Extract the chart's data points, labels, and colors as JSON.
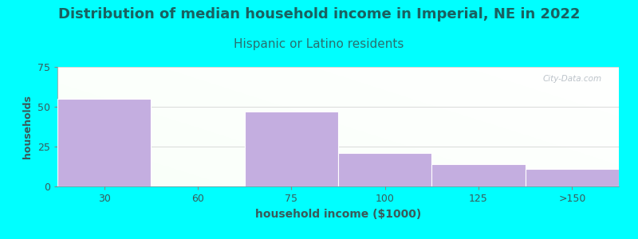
{
  "title": "Distribution of median household income in Imperial, NE in 2022",
  "subtitle": "Hispanic or Latino residents",
  "xlabel": "household income ($1000)",
  "ylabel": "households",
  "categories": [
    "30",
    "60",
    "75",
    "100",
    "125",
    ">150"
  ],
  "values": [
    55,
    0,
    47,
    21,
    14,
    11
  ],
  "bar_color": "#c4aee0",
  "bar_edge_color": "#c4aee0",
  "background_color": "#00ffff",
  "title_color": "#1a6060",
  "subtitle_color": "#2a7070",
  "axis_label_color": "#3a5a5a",
  "tick_color": "#3a5a5a",
  "ylim": [
    0,
    75
  ],
  "yticks": [
    0,
    25,
    50,
    75
  ],
  "title_fontsize": 13,
  "subtitle_fontsize": 11,
  "xlabel_fontsize": 10,
  "ylabel_fontsize": 9,
  "watermark_text": "City-Data.com",
  "watermark_color": "#b0b8c0"
}
